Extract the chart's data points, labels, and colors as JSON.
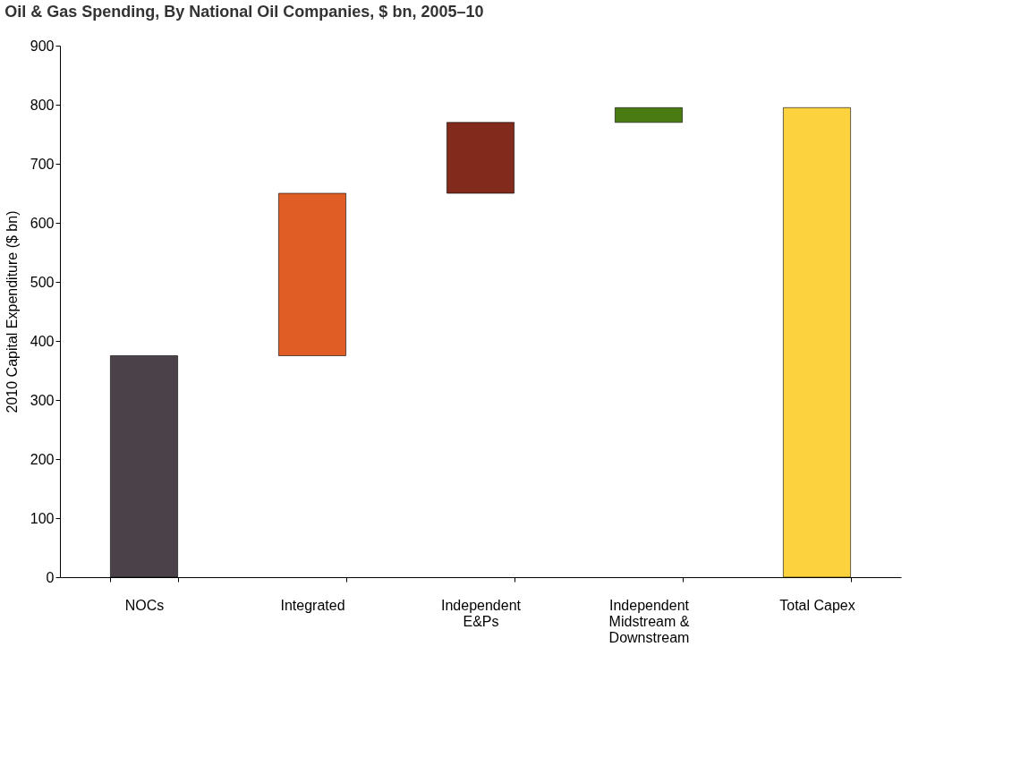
{
  "chart_data": {
    "type": "bar",
    "title": "Oil & Gas Spending, By National Oil Companies, $ bn, 2005–10",
    "ylabel": "2010 Capital Expenditure ($ bn)",
    "categories": [
      "NOCs",
      "Integrated",
      "Independent\nE&Ps",
      "Independent\nMidstream &\nDownstream",
      "Total Capex"
    ],
    "values": [
      375,
      275,
      120,
      25,
      795
    ],
    "base": [
      0,
      375,
      650,
      770,
      0
    ],
    "colors": [
      "#4a4149",
      "#e05e26",
      "#822b1c",
      "#4a7a12",
      "#fcd23e"
    ],
    "ylim": [
      0,
      900
    ],
    "yticks": [
      0,
      100,
      200,
      300,
      400,
      500,
      600,
      700,
      800,
      900
    ],
    "grid": false,
    "legend": false
  }
}
